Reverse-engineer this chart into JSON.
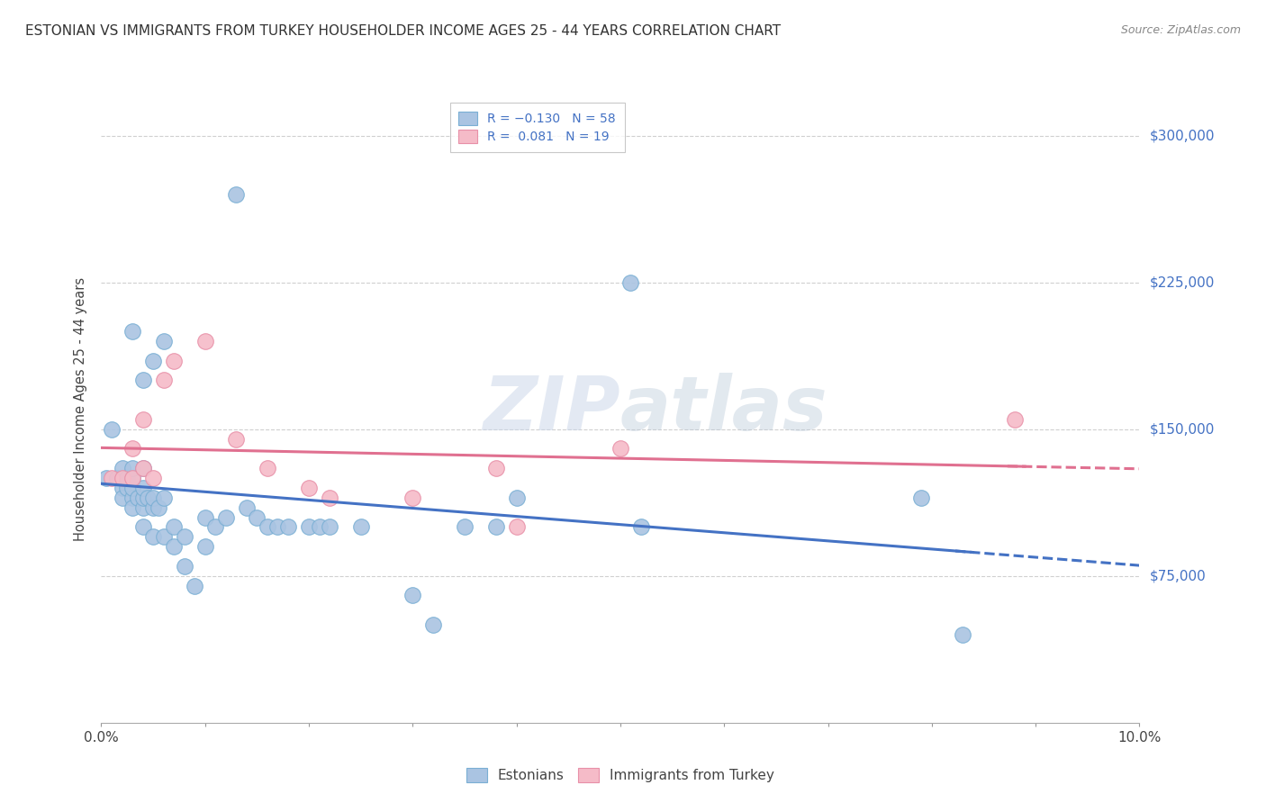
{
  "title": "ESTONIAN VS IMMIGRANTS FROM TURKEY HOUSEHOLDER INCOME AGES 25 - 44 YEARS CORRELATION CHART",
  "source": "Source: ZipAtlas.com",
  "ylabel": "Householder Income Ages 25 - 44 years",
  "xlim": [
    0.0,
    0.1
  ],
  "ylim": [
    0,
    320000
  ],
  "yticks": [
    75000,
    150000,
    225000,
    300000
  ],
  "ytick_labels": [
    "$75,000",
    "$150,000",
    "$225,000",
    "$300,000"
  ],
  "xticks": [
    0.0,
    0.01,
    0.02,
    0.03,
    0.04,
    0.05,
    0.06,
    0.07,
    0.08,
    0.09,
    0.1
  ],
  "xtick_labels": [
    "0.0%",
    "",
    "",
    "",
    "",
    "",
    "",
    "",
    "",
    "",
    "10.0%"
  ],
  "legend_bottom": [
    "Estonians",
    "Immigrants from Turkey"
  ],
  "watermark": "ZIPAtlas",
  "estonians_x": [
    0.0005,
    0.001,
    0.0015,
    0.002,
    0.002,
    0.002,
    0.0025,
    0.0025,
    0.003,
    0.003,
    0.003,
    0.003,
    0.003,
    0.003,
    0.0035,
    0.004,
    0.004,
    0.004,
    0.004,
    0.004,
    0.004,
    0.0045,
    0.005,
    0.005,
    0.005,
    0.005,
    0.0055,
    0.006,
    0.006,
    0.006,
    0.007,
    0.007,
    0.008,
    0.008,
    0.009,
    0.01,
    0.01,
    0.011,
    0.012,
    0.013,
    0.014,
    0.015,
    0.016,
    0.017,
    0.018,
    0.02,
    0.021,
    0.022,
    0.025,
    0.03,
    0.032,
    0.035,
    0.038,
    0.04,
    0.051,
    0.052,
    0.079,
    0.083
  ],
  "estonians_y": [
    125000,
    150000,
    125000,
    120000,
    115000,
    130000,
    120000,
    125000,
    115000,
    110000,
    120000,
    125000,
    130000,
    200000,
    115000,
    100000,
    110000,
    115000,
    120000,
    130000,
    175000,
    115000,
    95000,
    110000,
    115000,
    185000,
    110000,
    95000,
    115000,
    195000,
    90000,
    100000,
    80000,
    95000,
    70000,
    90000,
    105000,
    100000,
    105000,
    270000,
    110000,
    105000,
    100000,
    100000,
    100000,
    100000,
    100000,
    100000,
    100000,
    65000,
    50000,
    100000,
    100000,
    115000,
    225000,
    100000,
    115000,
    45000
  ],
  "turkey_x": [
    0.001,
    0.002,
    0.003,
    0.003,
    0.004,
    0.004,
    0.005,
    0.006,
    0.007,
    0.01,
    0.013,
    0.016,
    0.02,
    0.022,
    0.03,
    0.038,
    0.04,
    0.05,
    0.088
  ],
  "turkey_y": [
    125000,
    125000,
    125000,
    140000,
    130000,
    155000,
    125000,
    175000,
    185000,
    195000,
    145000,
    130000,
    120000,
    115000,
    115000,
    130000,
    100000,
    140000,
    155000
  ],
  "estonian_color": "#aac4e2",
  "estonian_edge_color": "#7aafd4",
  "turkey_color": "#f5bbc8",
  "turkey_edge_color": "#e890a8",
  "estonian_line_color": "#4472c4",
  "turkey_line_color": "#e07090",
  "background_color": "#ffffff",
  "grid_color": "#d0d0d0"
}
